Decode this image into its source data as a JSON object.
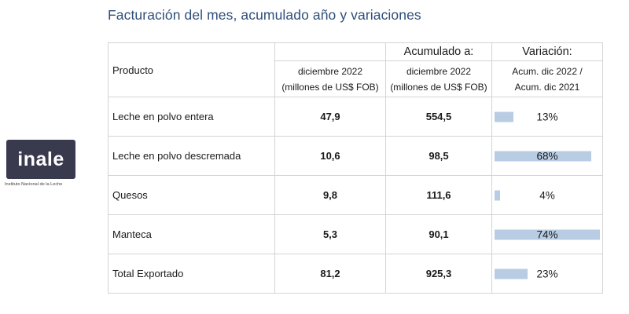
{
  "title": "Facturación del mes, acumulado año y variaciones",
  "logo": {
    "name": "inale",
    "subtitle": "Instituto Nacional de la Leche",
    "bg_color": "#3a3a4f"
  },
  "headers": {
    "producto": "Producto",
    "month_line1": "diciembre 2022",
    "month_line2": "(millones de US$ FOB)",
    "acum_title": "Acumulado a:",
    "acum_line1": "diciembre 2022",
    "acum_line2": "(millones de US$ FOB)",
    "var_title": "Variación:",
    "var_line1": "Acum. dic 2022 /",
    "var_line2": "Acum. dic 2021"
  },
  "rows": [
    {
      "product": "Leche en polvo entera",
      "month": "47,9",
      "acum": "554,5",
      "var": "13%",
      "var_value": 13
    },
    {
      "product": "Leche en polvo descremada",
      "month": "10,6",
      "acum": "98,5",
      "var": "68%",
      "var_value": 68
    },
    {
      "product": "Quesos",
      "month": "9,8",
      "acum": "111,6",
      "var": "4%",
      "var_value": 4
    },
    {
      "product": "Manteca",
      "month": "5,3",
      "acum": "90,1",
      "var": "74%",
      "var_value": 74
    },
    {
      "product": "Total Exportado",
      "month": "81,2",
      "acum": "925,3",
      "var": "23%",
      "var_value": 23
    }
  ],
  "colors": {
    "title": "#2f4f7a",
    "month_values": "#7db442",
    "acum_values": "#2e5a8a",
    "bar": "#b8cce4"
  }
}
